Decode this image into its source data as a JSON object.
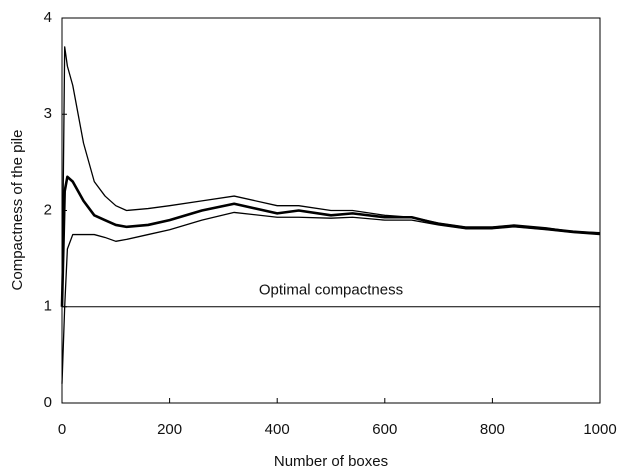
{
  "chart_data": {
    "type": "line",
    "xlabel": "Number of boxes",
    "ylabel": "Compactness of the pile",
    "x": [
      0,
      5,
      10,
      20,
      30,
      40,
      60,
      80,
      100,
      120,
      160,
      200,
      260,
      320,
      400,
      440,
      500,
      540,
      600,
      650,
      700,
      750,
      800,
      840,
      900,
      950,
      1000
    ],
    "series": [
      {
        "color": "#000000",
        "values": [
          1.0,
          3.7,
          3.5,
          3.3,
          3.0,
          2.7,
          2.3,
          2.15,
          2.05,
          2.0,
          2.02,
          2.05,
          2.1,
          2.15,
          2.05,
          2.05,
          2.0,
          2.0,
          1.95,
          1.93,
          1.87,
          1.83,
          1.83,
          1.85,
          1.82,
          1.78,
          1.77
        ]
      },
      {
        "color": "#000000",
        "values": [
          1.0,
          2.2,
          2.35,
          2.3,
          2.2,
          2.1,
          1.95,
          1.9,
          1.85,
          1.83,
          1.85,
          1.9,
          2.0,
          2.07,
          1.97,
          2.0,
          1.95,
          1.97,
          1.93,
          1.93,
          1.86,
          1.82,
          1.82,
          1.84,
          1.81,
          1.78,
          1.76
        ]
      },
      {
        "color": "#000000",
        "values": [
          0.2,
          1.0,
          1.6,
          1.75,
          1.75,
          1.75,
          1.75,
          1.72,
          1.68,
          1.7,
          1.75,
          1.8,
          1.9,
          1.98,
          1.93,
          1.93,
          1.92,
          1.93,
          1.9,
          1.9,
          1.85,
          1.81,
          1.81,
          1.83,
          1.8,
          1.77,
          1.75
        ]
      }
    ],
    "reference_line": {
      "value": 1,
      "label": "Optimal compactness"
    },
    "xlim": [
      0,
      1000
    ],
    "xticks": [
      0,
      200,
      400,
      600,
      800,
      1000
    ],
    "ylim": [
      0,
      4
    ],
    "yticks": [
      0,
      1,
      2,
      3,
      4
    ]
  }
}
